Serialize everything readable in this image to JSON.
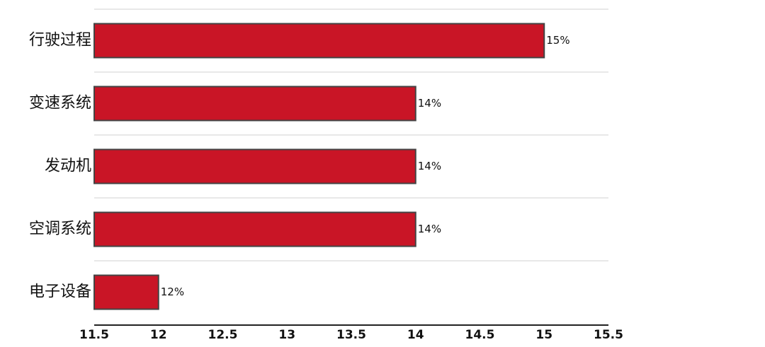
{
  "chart_data": {
    "type": "barh",
    "categories": [
      "行驶过程",
      "变速系统",
      "发动机",
      "空调系统",
      "电子设备"
    ],
    "values": [
      15,
      14,
      14,
      14,
      12
    ],
    "value_labels": [
      "15%",
      "14%",
      "14%",
      "14%",
      "12%"
    ],
    "color": "#c91526",
    "xlim": [
      11.5,
      15.5
    ],
    "xticks": [
      11.5,
      12,
      12.5,
      13,
      13.5,
      14,
      14.5,
      15,
      15.5
    ]
  }
}
